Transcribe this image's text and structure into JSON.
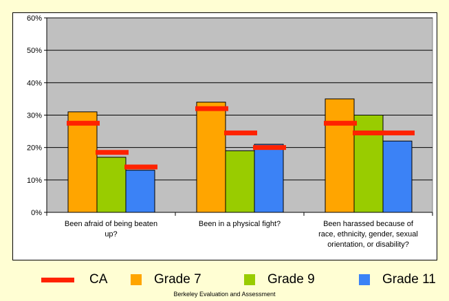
{
  "chart_data": {
    "type": "bar",
    "categories": [
      "Been afraid of being beaten up?",
      "Been in a physical fight?",
      "Been harassed because of race, ethnicity, gender, sexual orientation, or disability?"
    ],
    "category_lines": [
      [
        "Been afraid of being beaten",
        "up?"
      ],
      [
        "Been in a physical fight?"
      ],
      [
        "Been harassed because of",
        "race, ethnicity, gender, sexual",
        "orientation, or disability?"
      ]
    ],
    "series": [
      {
        "name": "Grade 7",
        "values": [
          31,
          34,
          35
        ],
        "color": "#ffa500"
      },
      {
        "name": "Grade 9",
        "values": [
          17,
          19,
          30
        ],
        "color": "#99cc00"
      },
      {
        "name": "Grade 11",
        "values": [
          13,
          21,
          22
        ],
        "color": "#3b82f6"
      }
    ],
    "reference_series": {
      "name": "CA",
      "values": [
        [
          27.5,
          18.5,
          14
        ],
        [
          32,
          24.5,
          20
        ],
        [
          27.5,
          24.5,
          24.5
        ]
      ],
      "color": "#ff2200"
    },
    "ylim": [
      0,
      60
    ],
    "yticks": [
      "0%",
      "10%",
      "20%",
      "30%",
      "40%",
      "50%",
      "60%"
    ],
    "grid": true,
    "plot_background": "#c0c0c0",
    "legend_position": "bottom"
  },
  "legend": {
    "items": [
      {
        "label": "CA",
        "color": "#ff2200"
      },
      {
        "label": "Grade 7",
        "color": "#ffa500"
      },
      {
        "label": "Grade 9",
        "color": "#99cc00"
      },
      {
        "label": "Grade 11",
        "color": "#3b82f6"
      }
    ]
  },
  "footer": {
    "text": "Berkeley Evaluation and Assessment"
  }
}
